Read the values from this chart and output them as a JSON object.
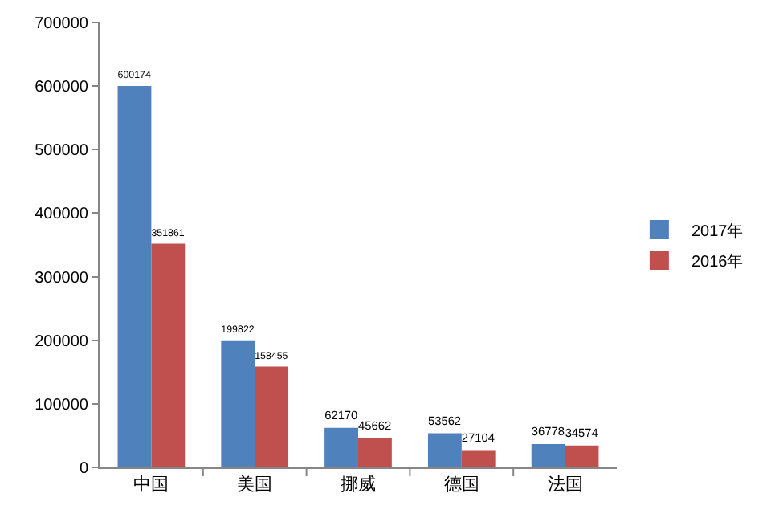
{
  "chart_data": {
    "type": "bar",
    "categories": [
      "中国",
      "美国",
      "挪威",
      "德国",
      "法国"
    ],
    "series": [
      {
        "name": "2017年",
        "color": "#4f81bd",
        "values": [
          600174,
          199822,
          62170,
          53562,
          36778
        ]
      },
      {
        "name": "2016年",
        "color": "#c0504d",
        "values": [
          351861,
          158455,
          45662,
          27104,
          34574
        ]
      }
    ],
    "ylim": [
      0,
      700000
    ],
    "yticks": [
      0,
      100000,
      200000,
      300000,
      400000,
      500000,
      600000,
      700000
    ],
    "grid": false,
    "legend": "right",
    "data_labels": true
  }
}
